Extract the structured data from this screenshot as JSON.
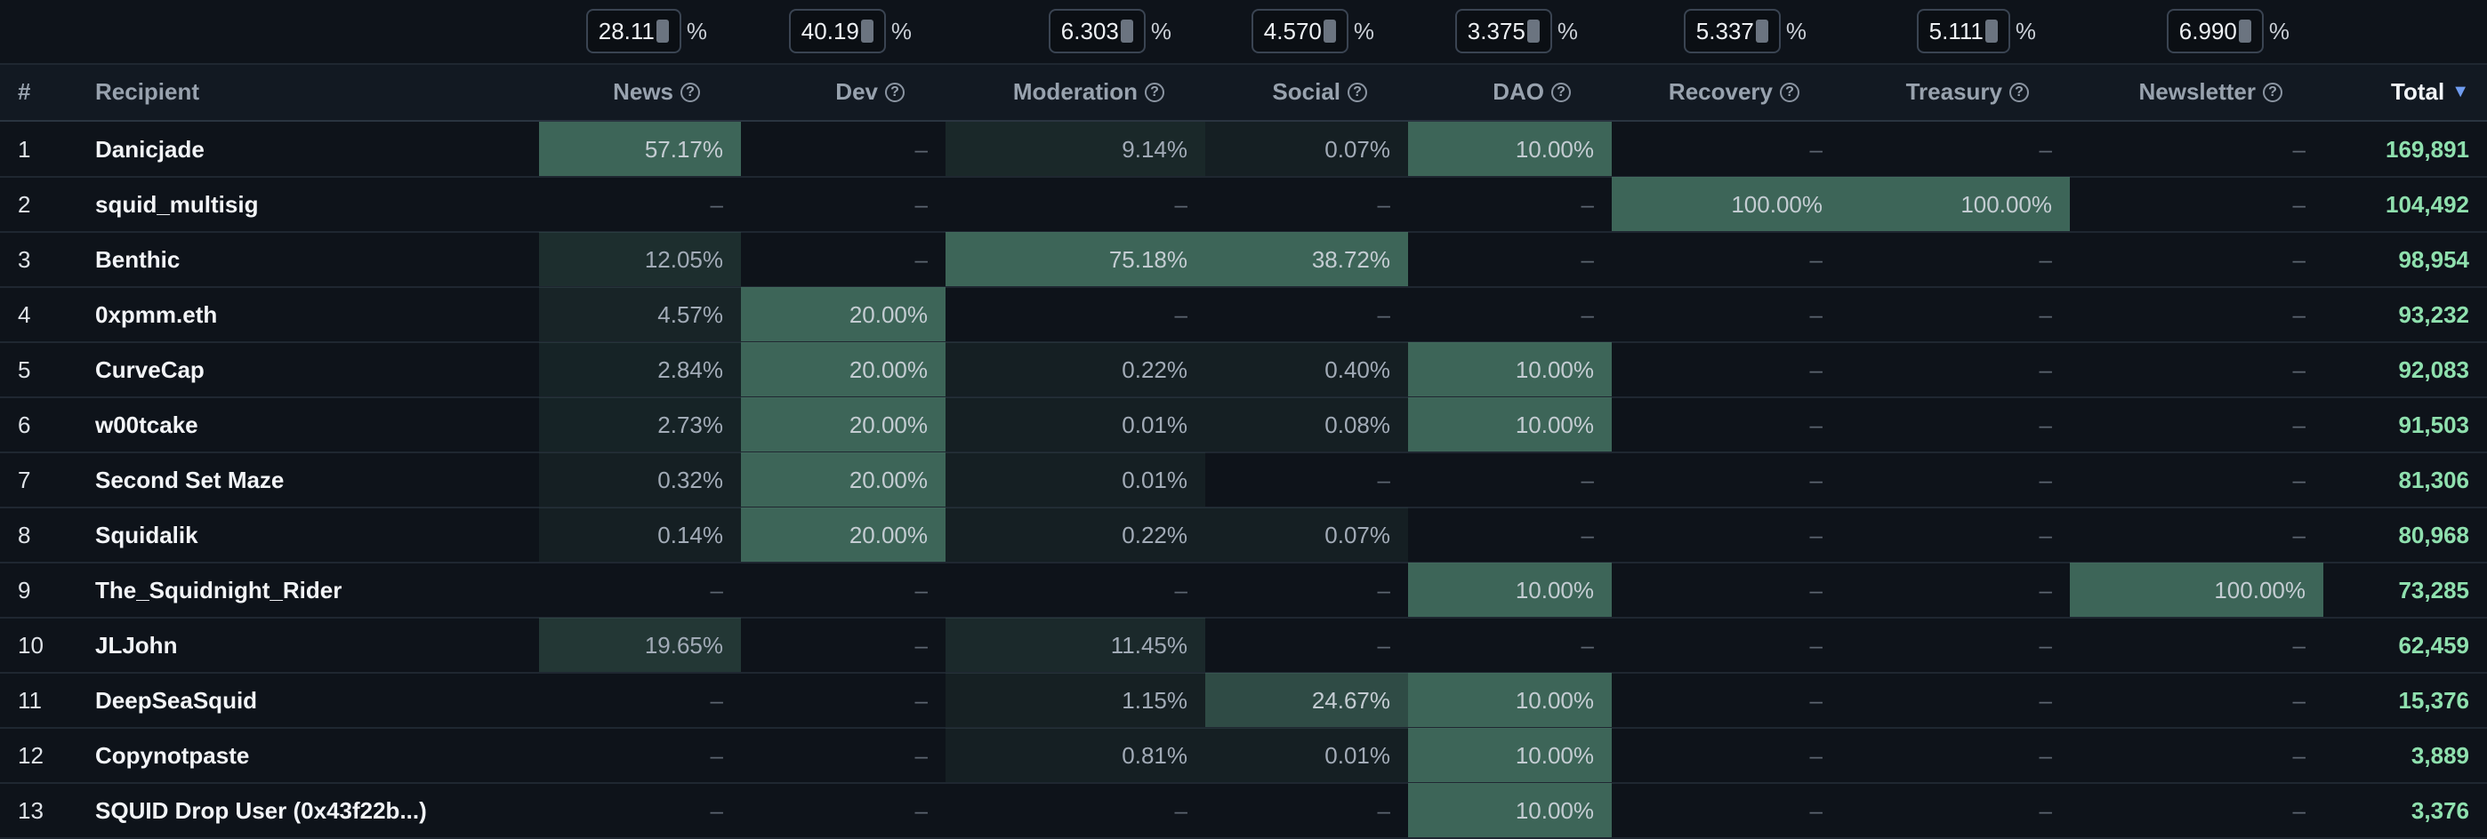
{
  "inputs": [
    "28.11",
    "40.19",
    "6.303",
    "4.570",
    "3.375",
    "5.337",
    "5.111",
    "6.990"
  ],
  "input_unit": "%",
  "header": {
    "rank": "#",
    "recipient": "Recipient",
    "columns": [
      "News",
      "Dev",
      "Moderation",
      "Social",
      "DAO",
      "Recovery",
      "Treasury",
      "Newsletter"
    ],
    "total": "Total"
  },
  "rows": [
    [
      "1",
      "Danicjade",
      "57.17%",
      "–",
      "9.14%",
      "0.07%",
      "10.00%",
      "–",
      "–",
      "–",
      "169,891"
    ],
    [
      "2",
      "squid_multisig",
      "–",
      "–",
      "–",
      "–",
      "–",
      "100.00%",
      "100.00%",
      "–",
      "104,492"
    ],
    [
      "3",
      "Benthic",
      "12.05%",
      "–",
      "75.18%",
      "38.72%",
      "–",
      "–",
      "–",
      "–",
      "98,954"
    ],
    [
      "4",
      "0xpmm.eth",
      "4.57%",
      "20.00%",
      "–",
      "–",
      "–",
      "–",
      "–",
      "–",
      "93,232"
    ],
    [
      "5",
      "CurveCap",
      "2.84%",
      "20.00%",
      "0.22%",
      "0.40%",
      "10.00%",
      "–",
      "–",
      "–",
      "92,083"
    ],
    [
      "6",
      "w00tcake",
      "2.73%",
      "20.00%",
      "0.01%",
      "0.08%",
      "10.00%",
      "–",
      "–",
      "–",
      "91,503"
    ],
    [
      "7",
      "Second Set Maze",
      "0.32%",
      "20.00%",
      "0.01%",
      "–",
      "–",
      "–",
      "–",
      "–",
      "81,306"
    ],
    [
      "8",
      "Squidalik",
      "0.14%",
      "20.00%",
      "0.22%",
      "0.07%",
      "–",
      "–",
      "–",
      "–",
      "80,968"
    ],
    [
      "9",
      "The_Squidnight_Rider",
      "–",
      "–",
      "–",
      "–",
      "10.00%",
      "–",
      "–",
      "100.00%",
      "73,285"
    ],
    [
      "10",
      "JLJohn",
      "19.65%",
      "–",
      "11.45%",
      "–",
      "–",
      "–",
      "–",
      "–",
      "62,459"
    ],
    [
      "11",
      "DeepSeaSquid",
      "–",
      "–",
      "1.15%",
      "24.67%",
      "10.00%",
      "–",
      "–",
      "–",
      "15,376"
    ],
    [
      "12",
      "Copynotpaste",
      "–",
      "–",
      "0.81%",
      "0.01%",
      "10.00%",
      "–",
      "–",
      "–",
      "3,889"
    ],
    [
      "13",
      "SQUID Drop User (0x43f22b...)",
      "–",
      "–",
      "–",
      "–",
      "10.00%",
      "–",
      "–",
      "–",
      "3,376"
    ]
  ]
}
